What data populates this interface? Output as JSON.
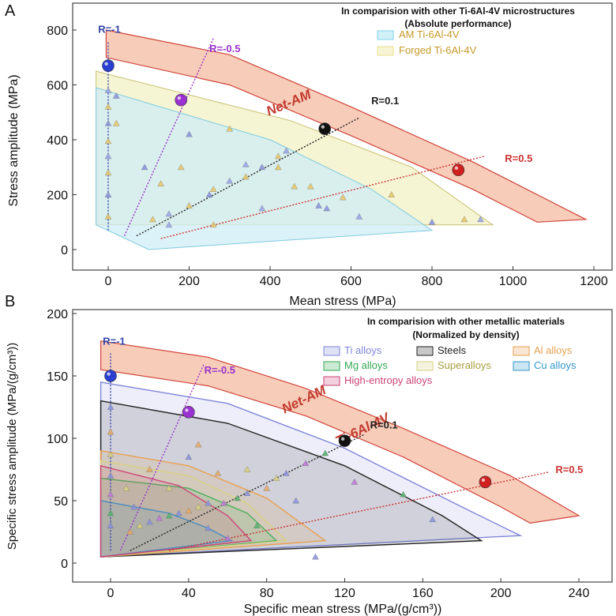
{
  "chart_data": [
    {
      "panel": "A",
      "type": "scatter",
      "title": "In comparision with other Ti-6Al-4V microstructures",
      "subtitle": "(Absolute performance)",
      "xlabel": "Mean stress (MPa)",
      "ylabel": "Stress amplitude (MPa)",
      "xlim": [
        -100,
        1200
      ],
      "ylim": [
        -30,
        820
      ],
      "xticks": [
        0,
        200,
        400,
        600,
        800,
        1000,
        1200
      ],
      "yticks": [
        0,
        200,
        400,
        600,
        800
      ],
      "legend_position": "top-right",
      "legend": [
        {
          "name": "AM Ti-6Al-4V",
          "color": "#7fd3e8"
        },
        {
          "name": "Forged Ti-6Al-4V",
          "color": "#e8e08a"
        }
      ],
      "band_label": "Net-AM",
      "band": {
        "outer": [
          [
            -5,
            800
          ],
          [
            300,
            710
          ],
          [
            600,
            520
          ],
          [
            900,
            320
          ],
          [
            1180,
            110
          ]
        ],
        "inner": [
          [
            -5,
            700
          ],
          [
            300,
            600
          ],
          [
            600,
            415
          ],
          [
            900,
            220
          ],
          [
            1060,
            100
          ]
        ]
      },
      "regions": [
        {
          "name": "Forged Ti-6Al-4V",
          "polygon": [
            [
              -30,
              650
            ],
            [
              -30,
              90
            ],
            [
              950,
              90
            ],
            [
              750,
              300
            ],
            [
              450,
              470
            ]
          ]
        },
        {
          "name": "AM Ti-6Al-4V",
          "polygon": [
            [
              -30,
              590
            ],
            [
              -30,
              90
            ],
            [
              100,
              0
            ],
            [
              800,
              70
            ],
            [
              650,
              220
            ],
            [
              400,
              400
            ]
          ]
        }
      ],
      "ratio_lines": [
        {
          "label": "R=-1",
          "color": "#3344aa",
          "from": [
            0,
            70
          ],
          "to": [
            0,
            760
          ],
          "label_at": [
            -25,
            790
          ]
        },
        {
          "label": "R=-0.5",
          "color": "#9933cc",
          "from": [
            40,
            50
          ],
          "to": [
            260,
            770
          ],
          "label_at": [
            250,
            720
          ]
        },
        {
          "label": "R=0.1",
          "color": "#222222",
          "from": [
            70,
            50
          ],
          "to": [
            620,
            480
          ],
          "label_at": [
            650,
            530
          ]
        },
        {
          "label": "R=0.5",
          "color": "#cc3333",
          "from": [
            130,
            40
          ],
          "to": [
            930,
            340
          ],
          "label_at": [
            980,
            320
          ]
        }
      ],
      "highlights": [
        {
          "label": "R=-1",
          "x": 0,
          "y": 670,
          "color": "#2a3fd0"
        },
        {
          "label": "R=-0.5",
          "x": 180,
          "y": 545,
          "color": "#9b30d0"
        },
        {
          "label": "R=0.1",
          "x": 535,
          "y": 440,
          "color": "#111111"
        },
        {
          "label": "R=0.5",
          "x": 865,
          "y": 290,
          "color": "#d02020"
        }
      ],
      "scatter": [
        {
          "x": 0,
          "y": 120
        },
        {
          "x": 0,
          "y": 200
        },
        {
          "x": 0,
          "y": 280
        },
        {
          "x": 0,
          "y": 340
        },
        {
          "x": 0,
          "y": 395
        },
        {
          "x": 0,
          "y": 460
        },
        {
          "x": 0,
          "y": 520
        },
        {
          "x": 0,
          "y": 580
        },
        {
          "x": 20,
          "y": 460
        },
        {
          "x": 20,
          "y": 560
        },
        {
          "x": 110,
          "y": 110
        },
        {
          "x": 150,
          "y": 130
        },
        {
          "x": 200,
          "y": 160
        },
        {
          "x": 250,
          "y": 200
        },
        {
          "x": 260,
          "y": 220
        },
        {
          "x": 300,
          "y": 250
        },
        {
          "x": 340,
          "y": 265
        },
        {
          "x": 380,
          "y": 300
        },
        {
          "x": 420,
          "y": 340
        },
        {
          "x": 440,
          "y": 360
        },
        {
          "x": 500,
          "y": 230
        },
        {
          "x": 520,
          "y": 160
        },
        {
          "x": 580,
          "y": 190
        },
        {
          "x": 620,
          "y": 120
        },
        {
          "x": 700,
          "y": 200
        },
        {
          "x": 800,
          "y": 100
        },
        {
          "x": 880,
          "y": 110
        },
        {
          "x": 920,
          "y": 110
        },
        {
          "x": 180,
          "y": 300
        },
        {
          "x": 200,
          "y": 420
        },
        {
          "x": 300,
          "y": 440
        },
        {
          "x": 340,
          "y": 310
        },
        {
          "x": 420,
          "y": 300
        },
        {
          "x": 90,
          "y": 300
        },
        {
          "x": 130,
          "y": 240
        },
        {
          "x": 380,
          "y": 150
        },
        {
          "x": 460,
          "y": 230
        },
        {
          "x": 540,
          "y": 150
        },
        {
          "x": 260,
          "y": 90
        },
        {
          "x": 150,
          "y": 90
        }
      ]
    },
    {
      "panel": "B",
      "type": "scatter",
      "title": "In comparision with other metallic materials",
      "subtitle": "(Normalized by density)",
      "xlabel": "Specific mean stress (MPa/(g/cm³))",
      "ylabel": "Specific stress amplitude (MPa/(g/cm³))",
      "xlim": [
        -20,
        250
      ],
      "ylim": [
        -5,
        200
      ],
      "xticks": [
        0,
        40,
        80,
        120,
        160,
        200,
        240
      ],
      "yticks": [
        0,
        50,
        100,
        150,
        200
      ],
      "legend_position": "top-right",
      "legend": [
        {
          "name": "Ti alloys",
          "color": "#7f86d8"
        },
        {
          "name": "Steels",
          "color": "#222222"
        },
        {
          "name": "Al alloys",
          "color": "#e8a050"
        },
        {
          "name": "Mg alloys",
          "color": "#33aa55"
        },
        {
          "name": "Superalloys",
          "color": "#d8d080"
        },
        {
          "name": "Cu alloys",
          "color": "#3399cc"
        },
        {
          "name": "High-entropy alloys",
          "color": "#cc4477"
        }
      ],
      "band_label_lines": [
        "Net-AM",
        "Ti-6Al-4V"
      ],
      "band": {
        "outer": [
          [
            -5,
            178
          ],
          [
            50,
            165
          ],
          [
            100,
            140
          ],
          [
            150,
            108
          ],
          [
            205,
            70
          ],
          [
            240,
            38
          ]
        ],
        "inner": [
          [
            -5,
            155
          ],
          [
            50,
            142
          ],
          [
            100,
            118
          ],
          [
            150,
            85
          ],
          [
            200,
            45
          ],
          [
            215,
            32
          ]
        ]
      },
      "envelopes": [
        {
          "name": "Ti alloys",
          "points": [
            [
              -5,
              145
            ],
            [
              60,
              128
            ],
            [
              120,
              92
            ],
            [
              180,
              45
            ],
            [
              210,
              22
            ]
          ]
        },
        {
          "name": "Steels",
          "points": [
            [
              -5,
              130
            ],
            [
              60,
              112
            ],
            [
              120,
              78
            ],
            [
              170,
              38
            ],
            [
              190,
              18
            ]
          ]
        },
        {
          "name": "Al alloys",
          "points": [
            [
              -5,
              90
            ],
            [
              40,
              78
            ],
            [
              80,
              52
            ],
            [
              110,
              18
            ]
          ]
        },
        {
          "name": "Mg alloys",
          "points": [
            [
              -5,
              68
            ],
            [
              40,
              60
            ],
            [
              70,
              40
            ],
            [
              85,
              18
            ]
          ]
        },
        {
          "name": "Superalloys",
          "points": [
            [
              -5,
              82
            ],
            [
              40,
              70
            ],
            [
              70,
              48
            ],
            [
              90,
              18
            ]
          ]
        },
        {
          "name": "Cu alloys",
          "points": [
            [
              -5,
              50
            ],
            [
              30,
              40
            ],
            [
              50,
              28
            ],
            [
              62,
              18
            ]
          ]
        },
        {
          "name": "High-entropy alloys",
          "points": [
            [
              -5,
              78
            ],
            [
              35,
              62
            ],
            [
              60,
              38
            ],
            [
              72,
              18
            ]
          ]
        }
      ],
      "ratio_lines": [
        {
          "label": "R=-1",
          "color": "#3344aa",
          "from": [
            0,
            10
          ],
          "to": [
            0,
            168
          ],
          "label_at": [
            -4,
            175
          ]
        },
        {
          "label": "R=-0.5",
          "color": "#9933cc",
          "from": [
            5,
            10
          ],
          "to": [
            48,
            160
          ],
          "label_at": [
            48,
            152
          ]
        },
        {
          "label": "R=0.1",
          "color": "#222222",
          "from": [
            10,
            10
          ],
          "to": [
            130,
            103
          ],
          "label_at": [
            133,
            108
          ]
        },
        {
          "label": "R=0.5",
          "color": "#cc3333",
          "from": [
            30,
            10
          ],
          "to": [
            225,
            73
          ],
          "label_at": [
            228,
            72
          ]
        }
      ],
      "highlights": [
        {
          "label": "R=-1",
          "x": 0,
          "y": 150,
          "color": "#2a3fd0"
        },
        {
          "label": "R=-0.5",
          "x": 40,
          "y": 121,
          "color": "#9b30d0"
        },
        {
          "label": "R=0.1",
          "x": 120,
          "y": 98,
          "color": "#111111"
        },
        {
          "label": "R=0.5",
          "x": 192,
          "y": 65,
          "color": "#d02020"
        }
      ],
      "scatter": [
        {
          "x": 0,
          "y": 125
        },
        {
          "x": 0,
          "y": 105
        },
        {
          "x": 0,
          "y": 87
        },
        {
          "x": 0,
          "y": 70
        },
        {
          "x": 0,
          "y": 55
        },
        {
          "x": 0,
          "y": 40
        },
        {
          "x": 0,
          "y": 30
        },
        {
          "x": 10,
          "y": 25
        },
        {
          "x": 15,
          "y": 30
        },
        {
          "x": 20,
          "y": 33
        },
        {
          "x": 25,
          "y": 36
        },
        {
          "x": 30,
          "y": 38
        },
        {
          "x": 35,
          "y": 40
        },
        {
          "x": 40,
          "y": 42
        },
        {
          "x": 45,
          "y": 45
        },
        {
          "x": 50,
          "y": 48
        },
        {
          "x": 58,
          "y": 48
        },
        {
          "x": 65,
          "y": 52
        },
        {
          "x": 70,
          "y": 56
        },
        {
          "x": 80,
          "y": 60
        },
        {
          "x": 85,
          "y": 68
        },
        {
          "x": 90,
          "y": 72
        },
        {
          "x": 100,
          "y": 80
        },
        {
          "x": 110,
          "y": 88
        },
        {
          "x": 40,
          "y": 85
        },
        {
          "x": 55,
          "y": 72
        },
        {
          "x": 70,
          "y": 75
        },
        {
          "x": 95,
          "y": 50
        },
        {
          "x": 125,
          "y": 65
        },
        {
          "x": 150,
          "y": 55
        },
        {
          "x": 165,
          "y": 35
        },
        {
          "x": 20,
          "y": 75
        },
        {
          "x": 30,
          "y": 60
        },
        {
          "x": 50,
          "y": 28
        },
        {
          "x": 60,
          "y": 20
        },
        {
          "x": 75,
          "y": 30
        },
        {
          "x": 105,
          "y": 5
        },
        {
          "x": 45,
          "y": 95
        },
        {
          "x": 8,
          "y": 60
        },
        {
          "x": 12,
          "y": 45
        }
      ]
    }
  ],
  "panel_letters": [
    "A",
    "B"
  ]
}
